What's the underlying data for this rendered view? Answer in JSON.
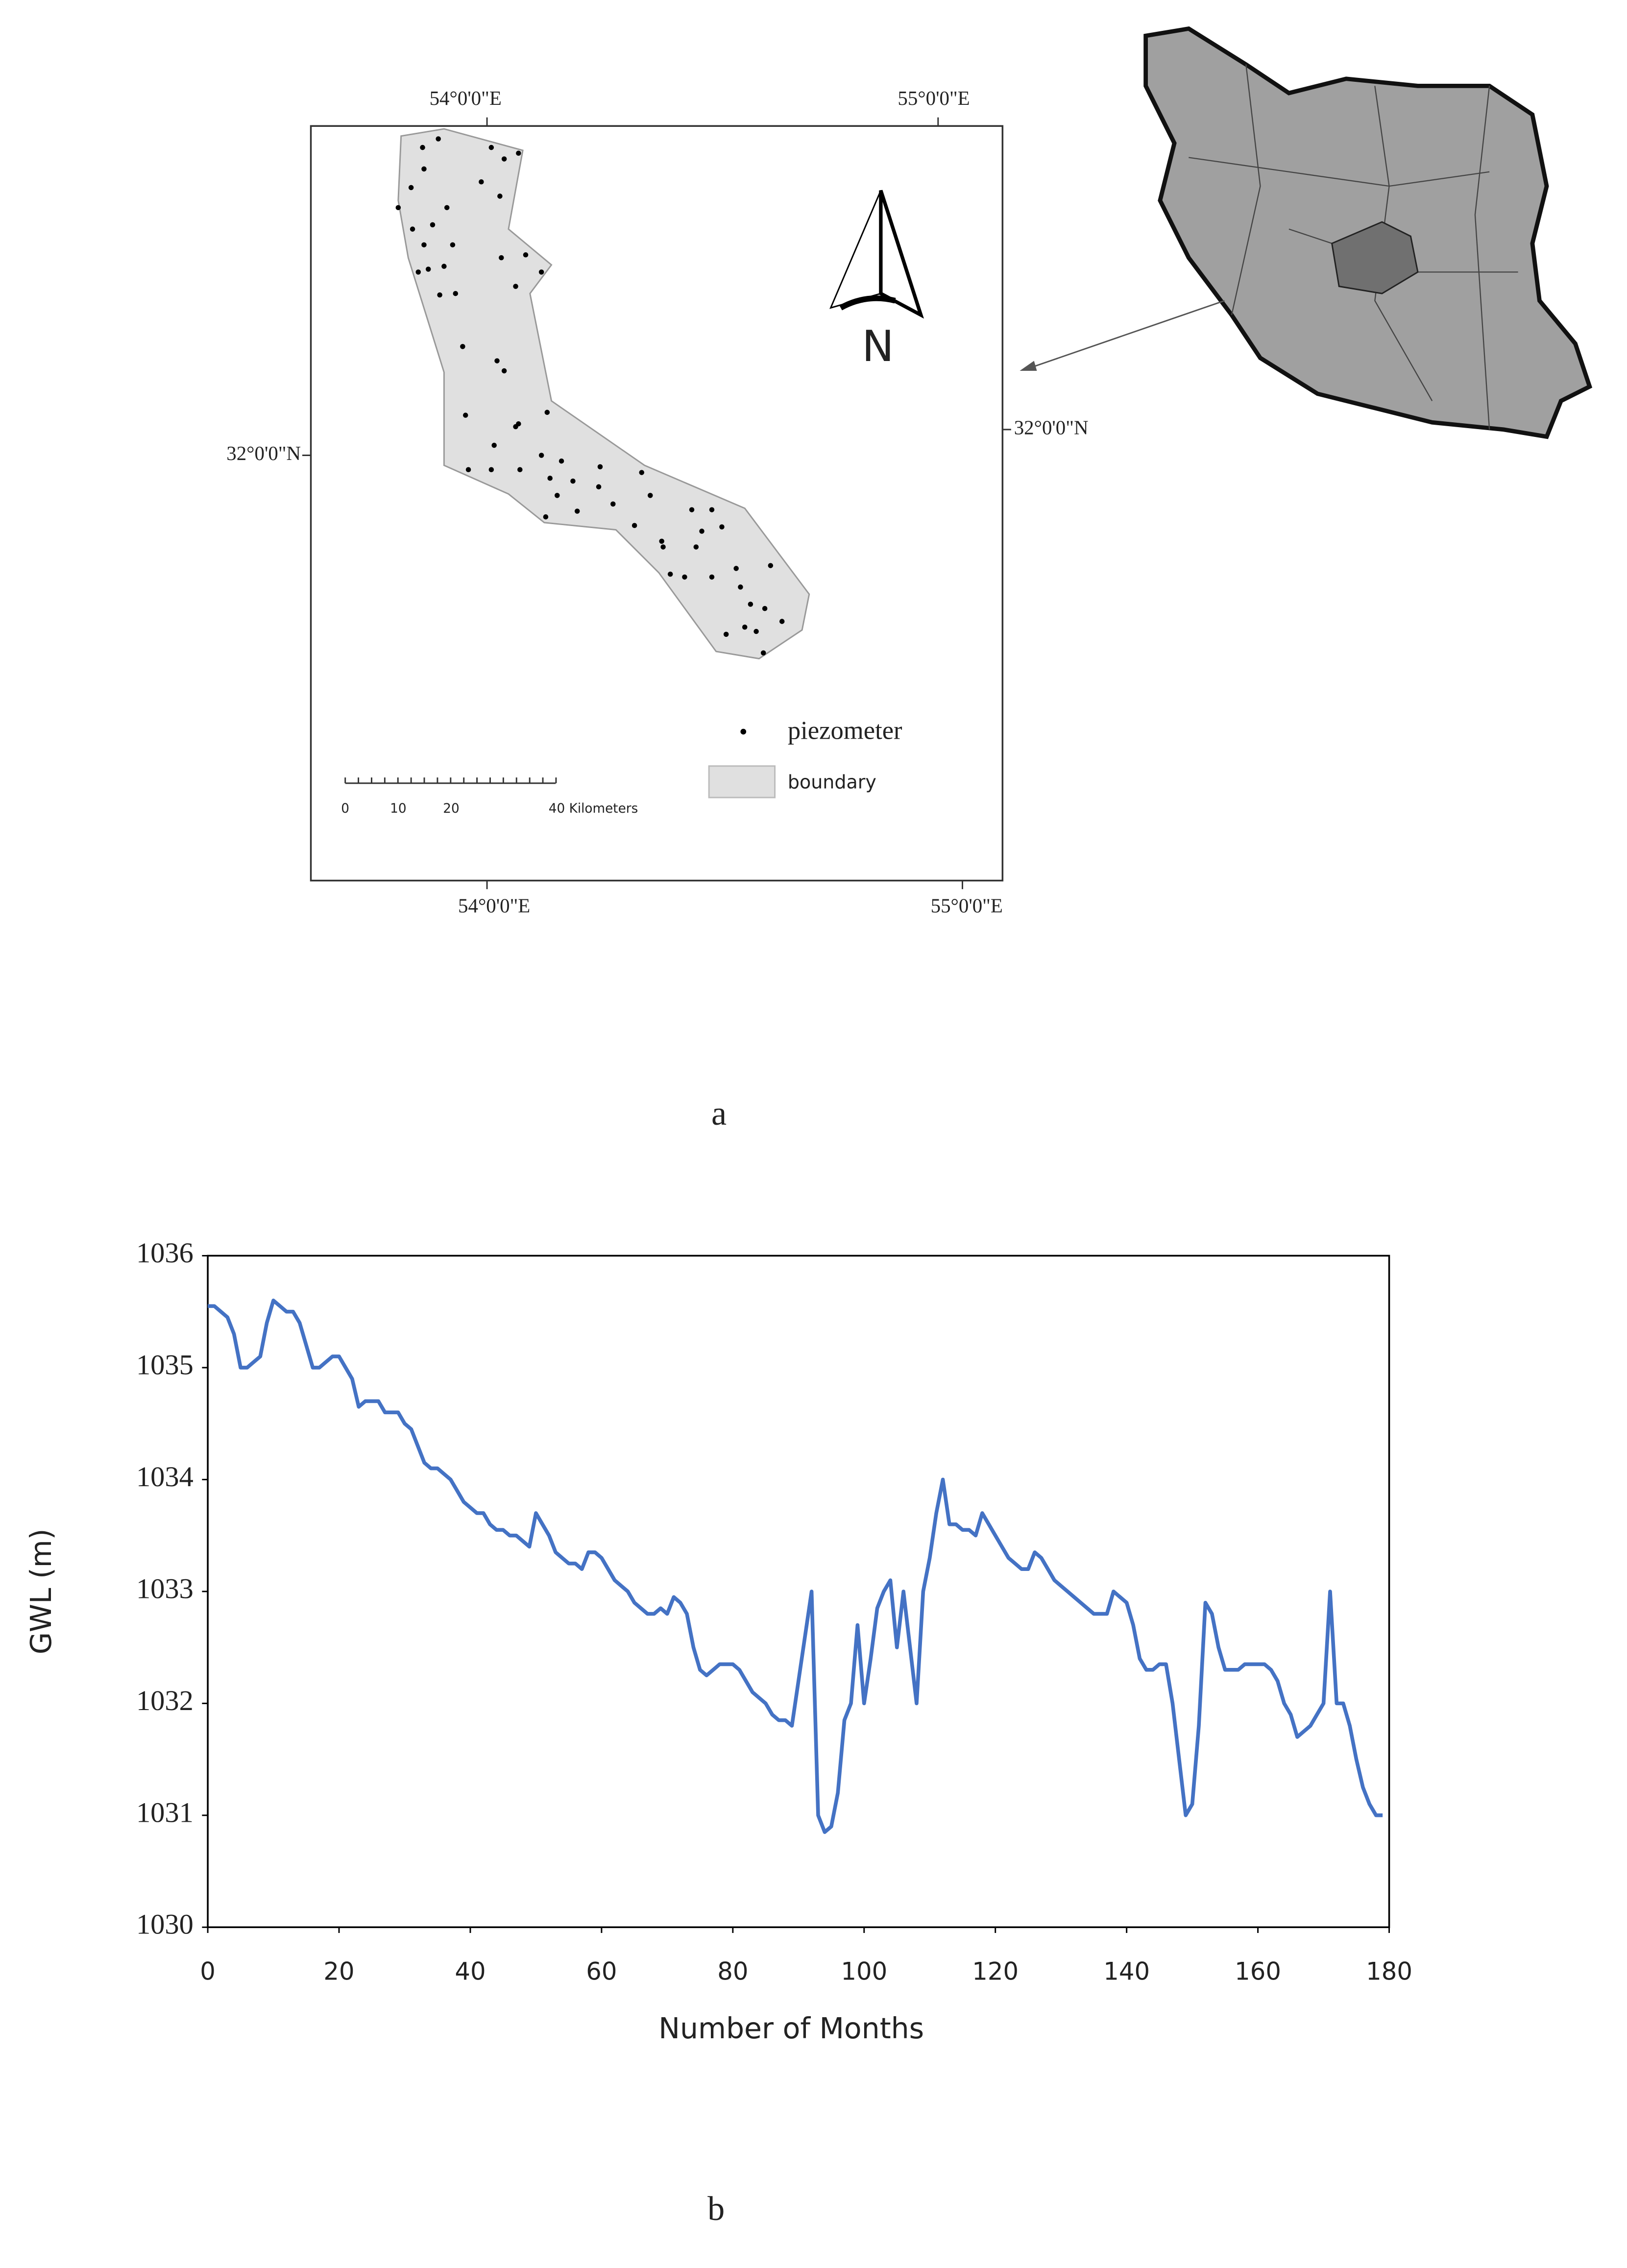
{
  "map": {
    "coordinate_labels": [
      "54°0'0\"E",
      "55°0'0\"E",
      "54°0'0\"E",
      "55°0'0\"E",
      "32°0'0\"N",
      "32°0'0\"N"
    ],
    "north_label": "N",
    "legend": [
      "piezometer",
      "boundary"
    ],
    "scale_labels": [
      "0",
      "10",
      "20",
      "40 Kilometers"
    ],
    "caption": "a"
  },
  "chart_data": {
    "type": "line",
    "xlabel": "Number of Months",
    "ylabel": "GWL (m)",
    "caption": "b",
    "color": "#4472c4",
    "xlim": [
      0,
      180
    ],
    "xticks": [
      0,
      20,
      40,
      60,
      80,
      100,
      120,
      140,
      160,
      180
    ],
    "ylim": [
      1030,
      1036
    ],
    "yticks": [
      1030,
      1031,
      1032,
      1033,
      1034,
      1035,
      1036
    ],
    "x": [
      0,
      1,
      2,
      3,
      4,
      5,
      6,
      7,
      8,
      9,
      10,
      11,
      12,
      13,
      14,
      15,
      16,
      17,
      18,
      19,
      20,
      21,
      22,
      23,
      24,
      25,
      26,
      27,
      28,
      29,
      30,
      31,
      32,
      33,
      34,
      35,
      36,
      37,
      38,
      39,
      40,
      41,
      42,
      43,
      44,
      45,
      46,
      47,
      48,
      49,
      50,
      51,
      52,
      53,
      54,
      55,
      56,
      57,
      58,
      59,
      60,
      61,
      62,
      63,
      64,
      65,
      66,
      67,
      68,
      69,
      70,
      71,
      72,
      73,
      74,
      75,
      76,
      77,
      78,
      79,
      80,
      81,
      82,
      83,
      84,
      85,
      86,
      87,
      88,
      89,
      90,
      91,
      92,
      93,
      94,
      95,
      96,
      97,
      98,
      99,
      100,
      101,
      102,
      103,
      104,
      105,
      106,
      107,
      108,
      109,
      110,
      111,
      112,
      113,
      114,
      115,
      116,
      117,
      118,
      119,
      120,
      121,
      122,
      123,
      124,
      125,
      126,
      127,
      128,
      129,
      130,
      131,
      132,
      133,
      134,
      135,
      136,
      137,
      138,
      139,
      140,
      141,
      142,
      143,
      144,
      145,
      146,
      147,
      148,
      149,
      150,
      151,
      152,
      153,
      154,
      155,
      156,
      157,
      158,
      159,
      160,
      161,
      162,
      163,
      164,
      165,
      166,
      167,
      168,
      169,
      170,
      171,
      172,
      173,
      174,
      175,
      176,
      177,
      178,
      179
    ],
    "values": [
      1035.55,
      1035.55,
      1035.5,
      1035.45,
      1035.3,
      1035.0,
      1035.0,
      1035.05,
      1035.1,
      1035.4,
      1035.6,
      1035.55,
      1035.5,
      1035.5,
      1035.4,
      1035.2,
      1035.0,
      1035.0,
      1035.05,
      1035.1,
      1035.1,
      1035.0,
      1034.9,
      1034.65,
      1034.7,
      1034.7,
      1034.7,
      1034.6,
      1034.6,
      1034.6,
      1034.5,
      1034.45,
      1034.3,
      1034.15,
      1034.1,
      1034.1,
      1034.05,
      1034.0,
      1033.9,
      1033.8,
      1033.75,
      1033.7,
      1033.7,
      1033.6,
      1033.55,
      1033.55,
      1033.5,
      1033.5,
      1033.45,
      1033.4,
      1033.7,
      1033.6,
      1033.5,
      1033.35,
      1033.3,
      1033.25,
      1033.25,
      1033.2,
      1033.35,
      1033.35,
      1033.3,
      1033.2,
      1033.1,
      1033.05,
      1033.0,
      1032.9,
      1032.85,
      1032.8,
      1032.8,
      1032.85,
      1032.8,
      1032.95,
      1032.9,
      1032.8,
      1032.5,
      1032.3,
      1032.25,
      1032.3,
      1032.35,
      1032.35,
      1032.35,
      1032.3,
      1032.2,
      1032.1,
      1032.05,
      1032.0,
      1031.9,
      1031.85,
      1031.85,
      1031.8,
      1032.2,
      1032.6,
      1033.0,
      1031.0,
      1030.85,
      1030.9,
      1031.2,
      1031.85,
      1032.0,
      1032.7,
      1032.0,
      1032.4,
      1032.85,
      1033.0,
      1033.1,
      1032.5,
      1033.0,
      1032.5,
      1032.0,
      1033.0,
      1033.3,
      1033.7,
      1034.0,
      1033.6,
      1033.6,
      1033.55,
      1033.55,
      1033.5,
      1033.7,
      1033.6,
      1033.5,
      1033.4,
      1033.3,
      1033.25,
      1033.2,
      1033.2,
      1033.35,
      1033.3,
      1033.2,
      1033.1,
      1033.05,
      1033.0,
      1032.95,
      1032.9,
      1032.85,
      1032.8,
      1032.8,
      1032.8,
      1033.0,
      1032.95,
      1032.9,
      1032.7,
      1032.4,
      1032.3,
      1032.3,
      1032.35,
      1032.35,
      1032.0,
      1031.5,
      1031.0,
      1031.1,
      1031.8,
      1032.9,
      1032.8,
      1032.5,
      1032.3,
      1032.3,
      1032.3,
      1032.35,
      1032.35,
      1032.35,
      1032.35,
      1032.3,
      1032.2,
      1032.0,
      1031.9,
      1031.7,
      1031.75,
      1031.8,
      1031.9,
      1032.0,
      1033.0,
      1032.0,
      1032.0,
      1031.8,
      1031.5,
      1031.25,
      1031.1,
      1031.0,
      1031.0
    ]
  }
}
